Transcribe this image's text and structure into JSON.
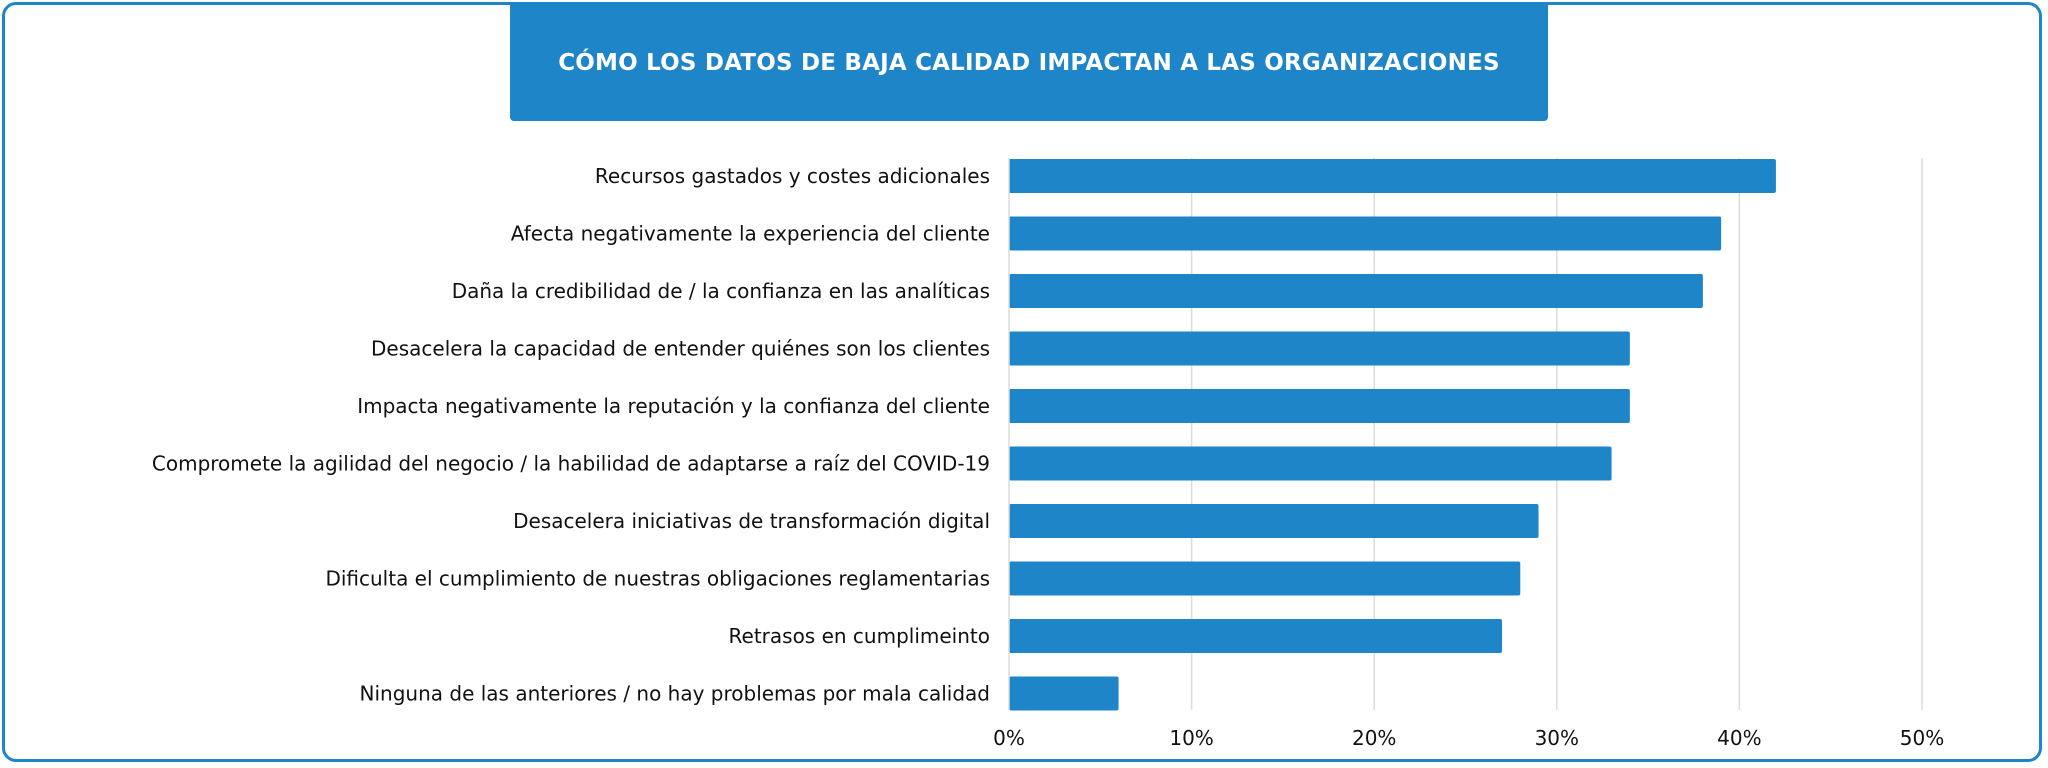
{
  "chart_data": {
    "type": "bar",
    "orientation": "horizontal",
    "title": "CÓMO LOS DATOS DE BAJA CALIDAD IMPACTAN A LAS ORGANIZACIONES",
    "categories": [
      "Recursos gastados y costes adicionales",
      "Afecta negativamente la experiencia del cliente",
      "Daña la credibilidad de / la confianza en las analíticas",
      "Desacelera la capacidad de entender quiénes son los clientes",
      "Impacta negativamente la reputación y la confianza del cliente",
      "Compromete la agilidad del negocio / la habilidad de adaptarse a raíz del COVID-19",
      "Desacelera iniciativas de transformación digital",
      "Dificulta el cumplimiento de nuestras obligaciones reglamentarias",
      "Retrasos en cumplimeinto",
      "Ninguna de las anteriores / no hay problemas por mala calidad"
    ],
    "values": [
      42,
      39,
      38,
      34,
      34,
      33,
      29,
      28,
      27,
      6
    ],
    "xlim": [
      0,
      50
    ],
    "xticks": [
      0,
      10,
      20,
      30,
      40,
      50
    ],
    "xtick_labels": [
      "0%",
      "10%",
      "20%",
      "30%",
      "40%",
      "50%"
    ],
    "grid": "vertical",
    "legend": "none",
    "bar_color": "#1e85c8",
    "accent_color": "#1e85c8"
  }
}
